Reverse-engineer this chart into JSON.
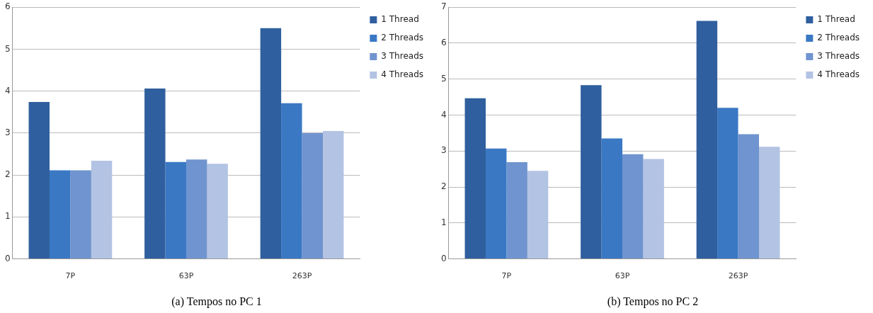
{
  "chart_data": [
    {
      "type": "bar",
      "title": "(a) Tempos no PC 1",
      "categories": [
        "7P",
        "63P",
        "263P"
      ],
      "series": [
        {
          "name": "1 Thread",
          "color": "#2f5f9e",
          "values": [
            3.74,
            4.06,
            5.5
          ]
        },
        {
          "name": "2 Threads",
          "color": "#3a78c4",
          "values": [
            2.11,
            2.31,
            3.71
          ]
        },
        {
          "name": "3 Threads",
          "color": "#7094cf",
          "values": [
            2.11,
            2.37,
            3.0
          ]
        },
        {
          "name": "4 Threads",
          "color": "#b3c3e3",
          "values": [
            2.34,
            2.27,
            3.05
          ]
        }
      ],
      "ylim": [
        0,
        6
      ],
      "yticks": [
        0,
        1,
        2,
        3,
        4,
        5,
        6
      ],
      "grid": "y",
      "legend": "right"
    },
    {
      "type": "bar",
      "title": "(b) Tempos no PC 2",
      "categories": [
        "7P",
        "63P",
        "263P"
      ],
      "series": [
        {
          "name": "1 Thread",
          "color": "#2f5f9e",
          "values": [
            4.47,
            4.83,
            6.62
          ]
        },
        {
          "name": "2 Threads",
          "color": "#3a78c4",
          "values": [
            3.07,
            3.35,
            4.2
          ]
        },
        {
          "name": "3 Threads",
          "color": "#7094cf",
          "values": [
            2.69,
            2.91,
            3.47
          ]
        },
        {
          "name": "4 Threads",
          "color": "#b3c3e3",
          "values": [
            2.45,
            2.78,
            3.12
          ]
        }
      ],
      "ylim": [
        0,
        7
      ],
      "yticks": [
        0,
        1,
        2,
        3,
        4,
        5,
        6,
        7
      ],
      "grid": "y",
      "legend": "right"
    }
  ]
}
